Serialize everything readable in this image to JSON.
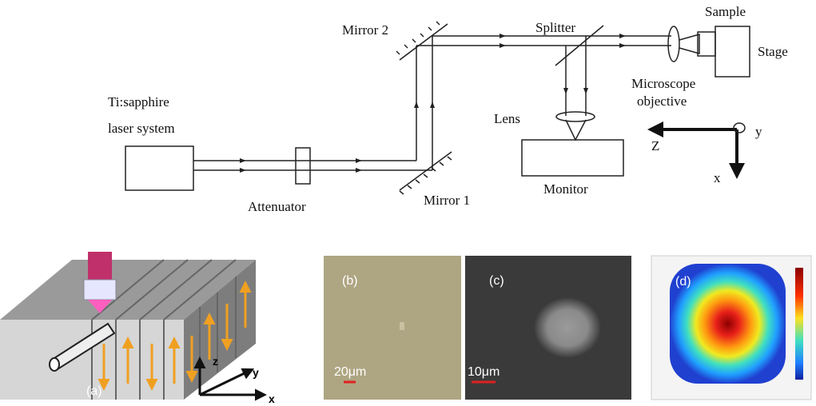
{
  "setup": {
    "laser": [
      "Ti:sapphire",
      "laser system"
    ],
    "attenuator": "Attenuator",
    "mirror1": "Mirror 1",
    "mirror2": "Mirror 2",
    "splitter": "Splitter",
    "lens": "Lens",
    "monitor": "Monitor",
    "sample": "Sample",
    "stage": "Stage",
    "objective": [
      "Microscope",
      "objective"
    ],
    "axes": {
      "z": "Z",
      "y": "y",
      "x": "x"
    }
  },
  "panels": {
    "a": {
      "label": "(a)",
      "axes": {
        "z": "z",
        "y": "y",
        "x": "x"
      }
    },
    "b": {
      "label": "(b)",
      "scale": "20μm"
    },
    "c": {
      "label": "(c)",
      "scale": "10μm"
    },
    "d": {
      "label": "(d)"
    }
  }
}
